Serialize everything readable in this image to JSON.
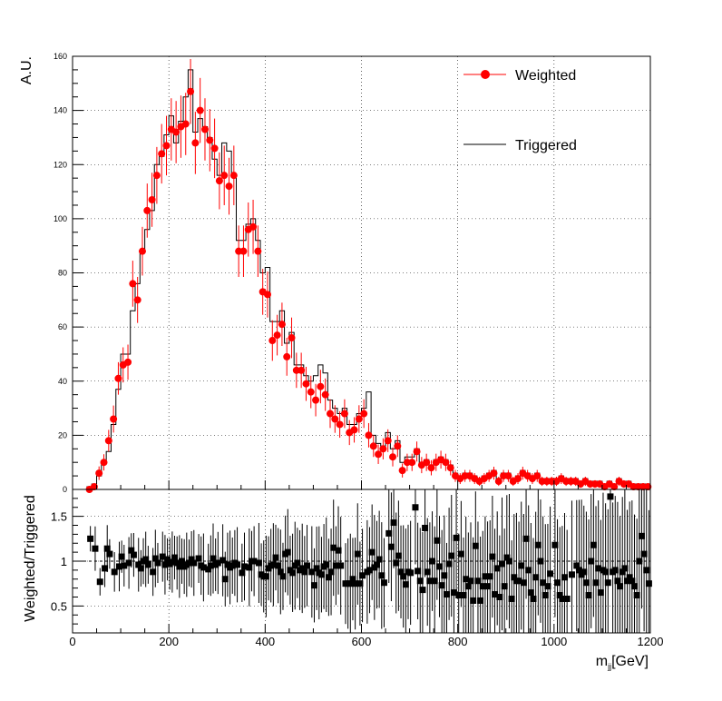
{
  "chart_data": [
    {
      "type": "histogram",
      "panel": "main",
      "ylabel": "A.U.",
      "xlim": [
        0,
        1200
      ],
      "ylim": [
        0,
        160
      ],
      "yticks": [
        0,
        20,
        40,
        60,
        80,
        100,
        120,
        140,
        160
      ],
      "grid": true,
      "legend_position": "top-right",
      "bin_width": 10,
      "bin_start": 30,
      "series": [
        {
          "name": "Weighted",
          "style": "markers-with-errors",
          "color": "#ff0000",
          "values": [
            0,
            1,
            6,
            10,
            18,
            26,
            41,
            46,
            47,
            76,
            70,
            88,
            103,
            107,
            116,
            124,
            127,
            133,
            132,
            134,
            135,
            147,
            128,
            140,
            133,
            129,
            126,
            114,
            116,
            112,
            116,
            88,
            88,
            96,
            97,
            88,
            73,
            72,
            55,
            57,
            61,
            49,
            56,
            44,
            44,
            39,
            36,
            33,
            38,
            35,
            28,
            26,
            24,
            28,
            21,
            22,
            26,
            28,
            20,
            16,
            13,
            15,
            18,
            12,
            16,
            7,
            10,
            10,
            14,
            9,
            10,
            8,
            10,
            11,
            10,
            8,
            5,
            4,
            5,
            5,
            4,
            3,
            4,
            5,
            6,
            3,
            5,
            5,
            3,
            4,
            6,
            5,
            4,
            5,
            3,
            3,
            3,
            3,
            4,
            3,
            3,
            3,
            2,
            3,
            2,
            2,
            2,
            1,
            2,
            1,
            3,
            2,
            2,
            1,
            1,
            1,
            1
          ],
          "errors": [
            0.5,
            1,
            2.5,
            3,
            4,
            5,
            6,
            6.5,
            6.5,
            8.5,
            8.5,
            9,
            10,
            10,
            10.5,
            11,
            11,
            11.5,
            11.5,
            11.5,
            11.5,
            12,
            11.5,
            12,
            11.5,
            11.5,
            11,
            10.5,
            11,
            10.5,
            11,
            9.5,
            9.5,
            10,
            10,
            9.5,
            8.5,
            8.5,
            7.5,
            7.5,
            8,
            7,
            7.5,
            6.5,
            6.5,
            6.3,
            6,
            6,
            6.2,
            6,
            5.3,
            5.1,
            4.9,
            5.3,
            4.6,
            4.7,
            5.1,
            5.3,
            4.5,
            4,
            3.6,
            3.9,
            4.2,
            3.5,
            4,
            2.6,
            3.2,
            3.2,
            3.7,
            3,
            3.2,
            2.8,
            3.2,
            3.3,
            3.2,
            2.8,
            2.2,
            2,
            2.2,
            2.2,
            2,
            1.7,
            2,
            2.2,
            2.4,
            1.7,
            2.2,
            2.2,
            1.7,
            2,
            2.4,
            2.2,
            2,
            2.2,
            1.7,
            1.7,
            1.7,
            1.7,
            2,
            1.7,
            1.7,
            1.7,
            1.4,
            1.7,
            1.4,
            1.4,
            1.4,
            1,
            1.4,
            1,
            1.7,
            1.4,
            1.4,
            1,
            1,
            1,
            1
          ]
        },
        {
          "name": "Triggered",
          "style": "step",
          "color": "#000000",
          "values": [
            1,
            2,
            5,
            10,
            14,
            24,
            37,
            50,
            50,
            66,
            76,
            88,
            96,
            103,
            120,
            123,
            131,
            138,
            128,
            136,
            145,
            155,
            132,
            137,
            134,
            130,
            122,
            116,
            128,
            125,
            116,
            92,
            92,
            98,
            100,
            92,
            80,
            82,
            62,
            62,
            66,
            54,
            58,
            46,
            46,
            42,
            40,
            42,
            46,
            43,
            33,
            30,
            28,
            30,
            24,
            24,
            28,
            30,
            36,
            20,
            17,
            16,
            21,
            15,
            18,
            10,
            12,
            12,
            15,
            10,
            11,
            9,
            11,
            12,
            11,
            9,
            6,
            5,
            6,
            6,
            5,
            4,
            5,
            6,
            7,
            4,
            6,
            6,
            4,
            5,
            7,
            6,
            5,
            6,
            4,
            4,
            4,
            4,
            5,
            4,
            4,
            4,
            3,
            4,
            3,
            3,
            3,
            2,
            3,
            2,
            4,
            3,
            3,
            2,
            2,
            2,
            2
          ]
        }
      ]
    },
    {
      "type": "scatter",
      "panel": "ratio",
      "xlabel": "m",
      "xlabel_sub": "jj",
      "xlabel_unit": "[GeV]",
      "ylabel": "Weighted/Triggered",
      "xlim": [
        0,
        1200
      ],
      "ylim": [
        0.2,
        1.8
      ],
      "xticks": [
        0,
        200,
        400,
        600,
        800,
        1000,
        1200
      ],
      "yticks": [
        0.5,
        1,
        1.5
      ],
      "reference_line": 1,
      "grid": true,
      "color": "#000000",
      "bin_width": 10,
      "bin_start": 30,
      "values": [
        1.25,
        1.14,
        0.77,
        0.93,
        1.14,
        1.08,
        0.89,
        0.94,
        1.04,
        0.95,
        0.98,
        1.12,
        1.08,
        0.96,
        0.93,
        1.01,
        0.97,
        0.96,
        1.03,
        0.99,
        1.01,
        0.95,
        0.97,
        1.02,
        0.99,
        0.99,
        1.03,
        0.98,
        0.91,
        0.9,
        1.0,
        0.96,
        0.96,
        0.98,
        0.97,
        0.96,
        0.91,
        0.88,
        0.89,
        0.92,
        0.92,
        0.91,
        0.97,
        0.96,
        0.96,
        0.93,
        0.9,
        0.79,
        0.83,
        0.81,
        0.85,
        0.87,
        0.86,
        0.93,
        0.88,
        0.92,
        0.93,
        0.93,
        0.56,
        0.8,
        0.76,
        0.94,
        0.86,
        0.8,
        0.89,
        0.7,
        0.83,
        0.83,
        0.93,
        0.9,
        0.91,
        0.89,
        0.91,
        0.92,
        0.91,
        0.89,
        0.83,
        0.8,
        0.83,
        0.83,
        0.8,
        0.75,
        0.8,
        0.83,
        0.86,
        0.75,
        0.83,
        0.83,
        0.75,
        0.8,
        0.86,
        0.83,
        0.8,
        0.83,
        0.75,
        0.75,
        0.75,
        0.75,
        0.8,
        0.75,
        0.75,
        0.75,
        0.67,
        0.75,
        0.67,
        0.67,
        0.67,
        0.5,
        0.67,
        0.5,
        0.75,
        0.67,
        0.67,
        0.5,
        0.5,
        0.5,
        0.5
      ],
      "points": [
        [
          37,
          1.25
        ],
        [
          42,
          0.0
        ],
        [
          47,
          1.14
        ],
        [
          57,
          0.77
        ],
        [
          67,
          0.92
        ],
        [
          72,
          1.14
        ],
        [
          77,
          1.08
        ],
        [
          87,
          0.88
        ],
        [
          97,
          0.94
        ],
        [
          102,
          1.05
        ],
        [
          107,
          0.95
        ],
        [
          117,
          0.98
        ],
        [
          122,
          1.12
        ],
        [
          127,
          1.07
        ],
        [
          137,
          0.96
        ],
        [
          142,
          0.92
        ],
        [
          147,
          1.0
        ],
        [
          152,
          1.02
        ],
        [
          157,
          0.96
        ],
        [
          167,
          0.88
        ],
        [
          172,
          1.03
        ],
        [
          177,
          0.98
        ],
        [
          187,
          1.05
        ],
        [
          192,
          0.96
        ],
        [
          197,
          1.02
        ],
        [
          202,
          0.97
        ],
        [
          207,
          0.99
        ],
        [
          212,
          1.04
        ],
        [
          217,
          0.98
        ],
        [
          222,
          0.94
        ],
        [
          227,
          1.0
        ],
        [
          232,
          0.94
        ],
        [
          237,
          0.96
        ],
        [
          242,
          0.98
        ],
        [
          247,
          1.02
        ],
        [
          252,
          0.98
        ],
        [
          262,
          1.03
        ],
        [
          267,
          0.95
        ],
        [
          272,
          0.93
        ],
        [
          282,
          0.91
        ],
        [
          287,
          0.95
        ],
        [
          292,
          1.03
        ],
        [
          297,
          0.96
        ],
        [
          302,
          0.98
        ],
        [
          312,
          1.01
        ],
        [
          317,
          0.8
        ],
        [
          322,
          0.96
        ],
        [
          327,
          0.93
        ],
        [
          332,
          0.95
        ],
        [
          337,
          0.98
        ],
        [
          342,
          0.96
        ],
        [
          352,
          0.87
        ],
        [
          357,
          0.94
        ],
        [
          367,
          0.93
        ],
        [
          372,
          1.0
        ],
        [
          377,
          1.0
        ],
        [
          387,
          0.98
        ],
        [
          392,
          0.85
        ],
        [
          397,
          0.83
        ],
        [
          402,
          0.83
        ],
        [
          407,
          0.92
        ],
        [
          412,
          0.95
        ],
        [
          417,
          0.96
        ],
        [
          422,
          1.04
        ],
        [
          427,
          0.95
        ],
        [
          432,
          0.88
        ],
        [
          437,
          0.83
        ],
        [
          442,
          1.08
        ],
        [
          447,
          1.1
        ],
        [
          452,
          0.9
        ],
        [
          457,
          0.87
        ],
        [
          462,
          0.95
        ],
        [
          467,
          0.98
        ],
        [
          472,
          0.9
        ],
        [
          477,
          0.92
        ],
        [
          482,
          0.88
        ],
        [
          487,
          0.95
        ],
        [
          497,
          0.88
        ],
        [
          502,
          0.73
        ],
        [
          507,
          0.92
        ],
        [
          512,
          0.87
        ],
        [
          517,
          0.85
        ],
        [
          522,
          0.94
        ],
        [
          527,
          0.96
        ],
        [
          532,
          0.82
        ],
        [
          537,
          0.88
        ],
        [
          542,
          1.15
        ],
        [
          547,
          0.95
        ],
        [
          552,
          1.12
        ],
        [
          557,
          0.95
        ],
        [
          567,
          0.75
        ],
        [
          572,
          0.75
        ],
        [
          577,
          0.75
        ],
        [
          582,
          0.8
        ],
        [
          587,
          0.75
        ],
        [
          592,
          1.08
        ],
        [
          597,
          0.75
        ],
        [
          602,
          0.84
        ],
        [
          612,
          0.88
        ],
        [
          617,
          0.9
        ],
        [
          622,
          1.1
        ],
        [
          627,
          0.93
        ],
        [
          632,
          0.96
        ],
        [
          637,
          1.02
        ],
        [
          642,
          0.84
        ],
        [
          647,
          0.76
        ],
        [
          657,
          1.31
        ],
        [
          662,
          1.16
        ],
        [
          667,
          1.43
        ],
        [
          672,
          0.98
        ],
        [
          677,
          1.06
        ],
        [
          682,
          0.88
        ],
        [
          687,
          0.83
        ],
        [
          692,
          0.74
        ],
        [
          697,
          0.88
        ],
        [
          702,
          0.87
        ],
        [
          712,
          1.6
        ],
        [
          717,
          0.89
        ],
        [
          722,
          0.78
        ],
        [
          727,
          0.68
        ],
        [
          732,
          1.37
        ],
        [
          737,
          0.88
        ],
        [
          742,
          0.78
        ],
        [
          747,
          1.0
        ],
        [
          752,
          0.78
        ],
        [
          757,
          1.23
        ],
        [
          762,
          0.94
        ],
        [
          767,
          0.73
        ],
        [
          772,
          0.84
        ],
        [
          777,
          0.63
        ],
        [
          782,
          0.97
        ],
        [
          787,
          1.06
        ],
        [
          792,
          0.65
        ],
        [
          797,
          1.26
        ],
        [
          802,
          0.62
        ],
        [
          807,
          1.08
        ],
        [
          812,
          0.62
        ],
        [
          817,
          0.8
        ],
        [
          822,
          0.72
        ],
        [
          827,
          0.78
        ],
        [
          832,
          0.56
        ],
        [
          837,
          1.17
        ],
        [
          842,
          0.78
        ],
        [
          847,
          0.56
        ],
        [
          852,
          0.72
        ],
        [
          857,
          0.83
        ],
        [
          862,
          0.72
        ],
        [
          867,
          0.83
        ],
        [
          872,
          1.05
        ],
        [
          877,
          0.63
        ],
        [
          882,
          0.92
        ],
        [
          887,
          0.6
        ],
        [
          892,
          0.97
        ],
        [
          897,
          0.72
        ],
        [
          902,
          1.04
        ],
        [
          907,
          1.0
        ],
        [
          912,
          0.58
        ],
        [
          917,
          0.82
        ],
        [
          922,
          0.78
        ],
        [
          927,
          0.78
        ],
        [
          932,
          0.95
        ],
        [
          937,
          0.76
        ],
        [
          942,
          1.25
        ],
        [
          947,
          0.9
        ],
        [
          952,
          0.65
        ],
        [
          957,
          0.58
        ],
        [
          962,
          0.82
        ],
        [
          967,
          1.18
        ],
        [
          972,
          1.0
        ],
        [
          977,
          0.76
        ],
        [
          982,
          0.62
        ],
        [
          987,
          0.72
        ],
        [
          992,
          0.86
        ],
        [
          1002,
          1.18
        ],
        [
          1007,
          0.76
        ],
        [
          1012,
          0.62
        ],
        [
          1017,
          0.58
        ],
        [
          1022,
          0.82
        ],
        [
          1027,
          0.58
        ],
        [
          1037,
          0.85
        ],
        [
          1047,
          0.95
        ],
        [
          1052,
          0.9
        ],
        [
          1057,
          0.85
        ],
        [
          1062,
          0.88
        ],
        [
          1067,
          0.76
        ],
        [
          1072,
          0.62
        ],
        [
          1077,
          1.0
        ],
        [
          1082,
          1.18
        ],
        [
          1087,
          0.76
        ],
        [
          1092,
          0.92
        ],
        [
          1097,
          0.65
        ],
        [
          1102,
          0.9
        ],
        [
          1107,
          0.88
        ],
        [
          1112,
          0.76
        ],
        [
          1117,
          1.72
        ],
        [
          1122,
          0.88
        ],
        [
          1127,
          0.9
        ],
        [
          1132,
          0.78
        ],
        [
          1137,
          0.72
        ],
        [
          1142,
          0.88
        ],
        [
          1147,
          0.92
        ],
        [
          1152,
          0.78
        ],
        [
          1157,
          0.82
        ],
        [
          1162,
          0.78
        ],
        [
          1167,
          0.72
        ],
        [
          1172,
          0.62
        ],
        [
          1177,
          1.0
        ],
        [
          1182,
          1.28
        ],
        [
          1187,
          1.08
        ],
        [
          1192,
          0.9
        ],
        [
          1197,
          0.75
        ]
      ]
    }
  ],
  "legend": {
    "weighted_label": "Weighted",
    "triggered_label": "Triggered"
  },
  "colors": {
    "weighted": "#ff0000",
    "triggered": "#000000",
    "grid": "#000000"
  }
}
